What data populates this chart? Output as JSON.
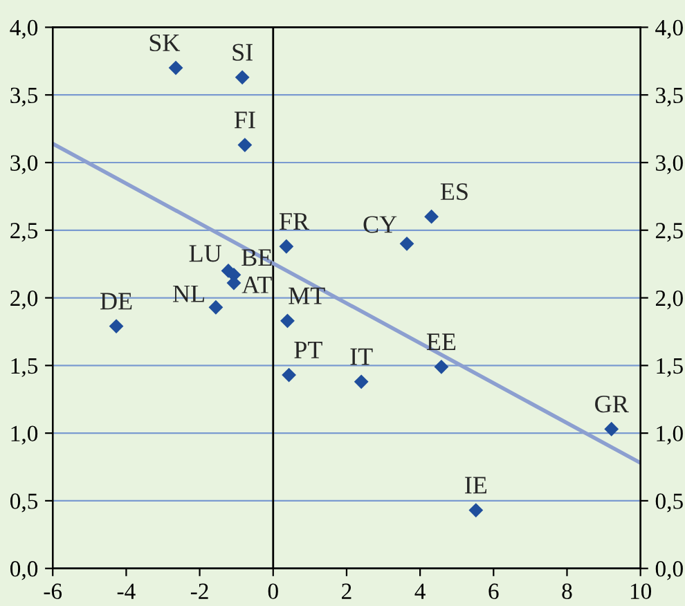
{
  "chart_data": {
    "type": "scatter",
    "series": [
      {
        "marker": "diamond",
        "color": "#1f4e9c",
        "x": [
          -2.65,
          -0.84,
          -0.77,
          0.36,
          3.64,
          4.31,
          -1.22,
          -1.07,
          -1.07,
          -1.56,
          -4.27,
          0.39,
          0.43,
          2.4,
          4.58,
          9.21,
          5.52
        ],
        "values": [
          3.7,
          3.63,
          3.13,
          2.38,
          2.4,
          2.6,
          2.2,
          2.17,
          2.11,
          1.93,
          1.79,
          1.83,
          1.43,
          1.38,
          1.49,
          1.03,
          0.43
        ]
      },
      {
        "type": "line",
        "color": "#8c9fd0",
        "x": [
          -6,
          10
        ],
        "values": [
          3.14,
          0.78
        ]
      }
    ],
    "xlim": [
      -6,
      10
    ],
    "xticks": [
      -6,
      -4,
      -2,
      0,
      2,
      4,
      6,
      8,
      10
    ],
    "ylim": [
      0,
      4
    ],
    "yticks": [
      {
        "value": 0,
        "label": "0,0"
      },
      {
        "value": 0.5,
        "label": "0,5"
      },
      {
        "value": 1,
        "label": "1,0"
      },
      {
        "value": 1.5,
        "label": "1,5"
      },
      {
        "value": 2,
        "label": "2,0"
      },
      {
        "value": 2.5,
        "label": "2,5"
      },
      {
        "value": 3,
        "label": "3,0"
      },
      {
        "value": 3.5,
        "label": "3,5"
      },
      {
        "value": 4,
        "label": "4,0"
      }
    ],
    "y2lim": [
      0,
      4
    ],
    "y2ticks": [
      {
        "value": 0,
        "label": "0,0"
      },
      {
        "value": 0.5,
        "label": "0,5"
      },
      {
        "value": 1,
        "label": "1,0"
      },
      {
        "value": 1.5,
        "label": "1,5"
      },
      {
        "value": 2,
        "label": "2,0"
      },
      {
        "value": 2.5,
        "label": "2,5"
      },
      {
        "value": 3,
        "label": "3,0"
      },
      {
        "value": 3.5,
        "label": "3,5"
      },
      {
        "value": 4,
        "label": "4,0"
      }
    ],
    "grid": "y",
    "ref_lines": [
      {
        "axis": "x",
        "value": 0,
        "color": "#000000"
      }
    ],
    "annotations": [
      {
        "text": "SK",
        "x": -2.65,
        "y": 3.7
      },
      {
        "text": "SI",
        "x": -0.84,
        "y": 3.63
      },
      {
        "text": "FI",
        "x": -0.77,
        "y": 3.13
      },
      {
        "text": "FR",
        "x": 0.36,
        "y": 2.38
      },
      {
        "text": "CY",
        "x": 3.64,
        "y": 2.4
      },
      {
        "text": "ES",
        "x": 4.31,
        "y": 2.6
      },
      {
        "text": "LU",
        "x": -1.22,
        "y": 2.2
      },
      {
        "text": "BE",
        "x": -1.07,
        "y": 2.17
      },
      {
        "text": "AT",
        "x": -1.07,
        "y": 2.11
      },
      {
        "text": "NL",
        "x": -1.56,
        "y": 1.93
      },
      {
        "text": "DE",
        "x": -4.27,
        "y": 1.79
      },
      {
        "text": "MT",
        "x": 0.39,
        "y": 1.83
      },
      {
        "text": "PT",
        "x": 0.43,
        "y": 1.43
      },
      {
        "text": "IT",
        "x": 2.4,
        "y": 1.38
      },
      {
        "text": "EE",
        "x": 4.58,
        "y": 1.49
      },
      {
        "text": "GR",
        "x": 9.21,
        "y": 1.03
      },
      {
        "text": "IE",
        "x": 5.52,
        "y": 0.43
      }
    ]
  }
}
